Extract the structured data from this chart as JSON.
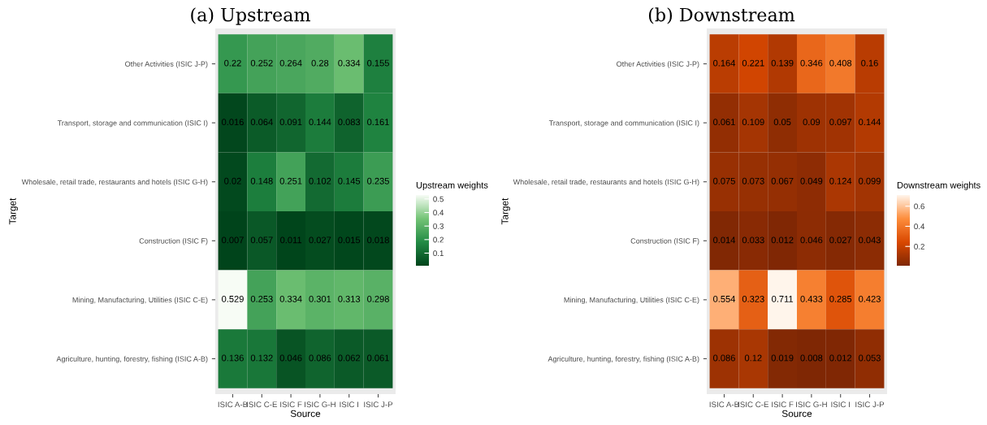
{
  "chart_data": [
    {
      "type": "heatmap",
      "title": "(a) Upstream",
      "xlabel": "Source",
      "ylabel": "Target",
      "clabel": "Upstream weights",
      "categories": [
        "ISIC A-B",
        "ISIC C-E",
        "ISIC F",
        "ISIC G-H",
        "ISIC I",
        "ISIC J-P"
      ],
      "y_categories": [
        "Other Activities (ISIC J-P)",
        "Transport, storage and communication (ISIC I)",
        "Wholesale, retail trade, restaurants and hotels (ISIC G-H)",
        "Construction (ISIC F)",
        "Mining, Manufacturing, Utilities (ISIC C-E)",
        "Agriculture, hunting, forestry, fishing (ISIC A-B)"
      ],
      "cells": [
        [
          0.22,
          0.252,
          0.264,
          0.28,
          0.334,
          0.155
        ],
        [
          0.016,
          0.064,
          0.091,
          0.144,
          0.083,
          0.161
        ],
        [
          0.02,
          0.148,
          0.251,
          0.102,
          0.145,
          0.235
        ],
        [
          0.007,
          0.057,
          0.011,
          0.027,
          0.015,
          0.018
        ],
        [
          0.529,
          0.253,
          0.334,
          0.301,
          0.313,
          0.298
        ],
        [
          0.136,
          0.132,
          0.046,
          0.086,
          0.062,
          0.061
        ]
      ],
      "colors": [
        "#00441b",
        "#238b45",
        "#74c476",
        "#f7fcf5"
      ],
      "clim": [
        0.007,
        0.529
      ],
      "cticks": [
        0.1,
        0.2,
        0.3,
        0.4,
        0.5
      ],
      "data_labels": true
    },
    {
      "type": "heatmap",
      "title": "(b) Downstream",
      "xlabel": "Source",
      "ylabel": "Target",
      "clabel": "Downstream weights",
      "categories": [
        "ISIC A-B",
        "ISIC C-E",
        "ISIC F",
        "ISIC G-H",
        "ISIC I",
        "ISIC J-P"
      ],
      "y_categories": [
        "Other Activities (ISIC J-P)",
        "Transport, storage and communication (ISIC I)",
        "Wholesale, retail trade, restaurants and hotels (ISIC G-H)",
        "Construction (ISIC F)",
        "Mining, Manufacturing, Utilities (ISIC C-E)",
        "Agriculture, hunting, forestry, fishing (ISIC A-B)"
      ],
      "cells": [
        [
          0.164,
          0.221,
          0.139,
          0.346,
          0.408,
          0.16
        ],
        [
          0.061,
          0.109,
          0.05,
          0.09,
          0.097,
          0.144
        ],
        [
          0.075,
          0.073,
          0.067,
          0.049,
          0.124,
          0.099
        ],
        [
          0.014,
          0.033,
          0.012,
          0.046,
          0.027,
          0.043
        ],
        [
          0.554,
          0.323,
          0.711,
          0.433,
          0.285,
          0.423
        ],
        [
          0.086,
          0.12,
          0.019,
          0.008,
          0.012,
          0.053
        ]
      ],
      "colors": [
        "#7f2704",
        "#d94801",
        "#fd8d3c",
        "#fff5eb"
      ],
      "clim": [
        0.008,
        0.711
      ],
      "cticks": [
        0.2,
        0.4,
        0.6
      ],
      "data_labels": true
    }
  ]
}
